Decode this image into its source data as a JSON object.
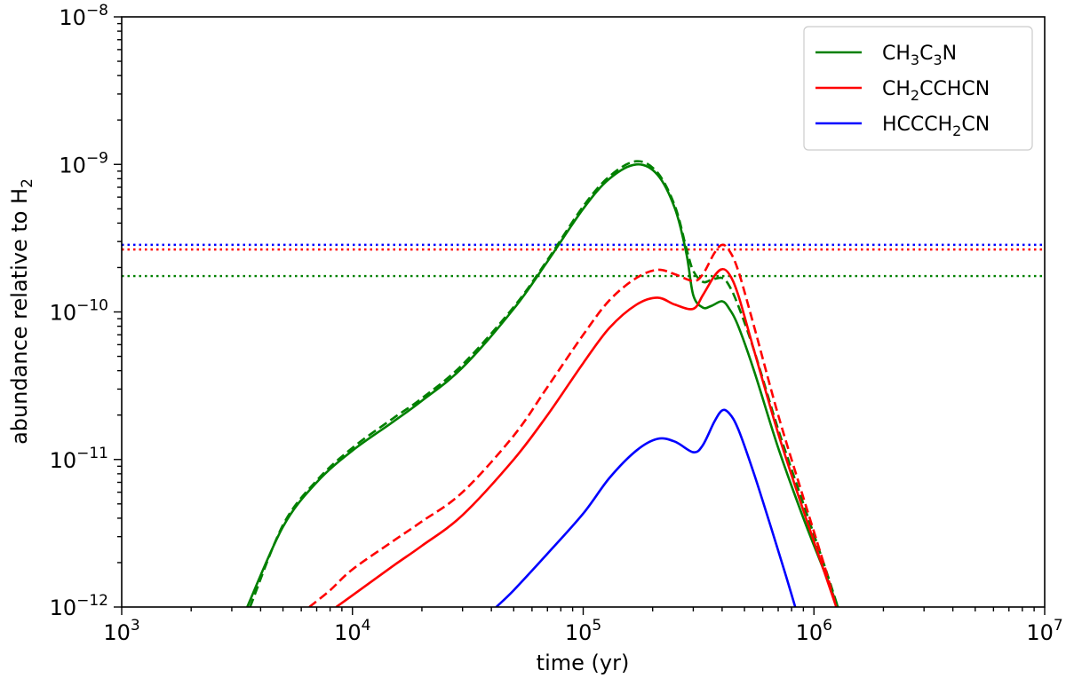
{
  "chart_data": {
    "type": "line",
    "title": "",
    "xlabel": "time (yr)",
    "ylabel": {
      "main": "abundance relative to H",
      "sub": "2"
    },
    "xscale": "log",
    "yscale": "log",
    "xlim": [
      1000,
      10000000
    ],
    "ylim": [
      1e-12,
      1e-08
    ],
    "grid": false,
    "legend_position": "top-right",
    "x_ticks": [
      {
        "value": 1000,
        "base": "10",
        "exp": "3"
      },
      {
        "value": 10000,
        "base": "10",
        "exp": "4"
      },
      {
        "value": 100000,
        "base": "10",
        "exp": "5"
      },
      {
        "value": 1000000,
        "base": "10",
        "exp": "6"
      },
      {
        "value": 10000000,
        "base": "10",
        "exp": "7"
      }
    ],
    "y_ticks": [
      {
        "value": 1e-12,
        "base": "10",
        "exp": "−12"
      },
      {
        "value": 1e-11,
        "base": "10",
        "exp": "−11"
      },
      {
        "value": 1e-10,
        "base": "10",
        "exp": "−10"
      },
      {
        "value": 1e-09,
        "base": "10",
        "exp": "−9"
      },
      {
        "value": 1e-08,
        "base": "10",
        "exp": "−8"
      }
    ],
    "legend": [
      {
        "parts": [
          [
            "CH",
            "3"
          ],
          [
            "C",
            "3"
          ],
          [
            "N",
            ""
          ]
        ],
        "color": "#008000"
      },
      {
        "parts": [
          [
            "CH",
            "2"
          ],
          [
            "CCHCN",
            ""
          ]
        ],
        "color": "#ff0000"
      },
      {
        "parts": [
          [
            "HCCCH",
            "2"
          ],
          [
            "CN",
            ""
          ]
        ],
        "color": "#0000ff"
      }
    ],
    "series": [
      {
        "name": "CH3C3N",
        "style": "solid",
        "color": "#008000",
        "x": [
          3500,
          5000,
          7000,
          10000,
          15000,
          20000,
          30000,
          50000,
          70000,
          100000,
          130000,
          170000,
          210000,
          250000,
          280000,
          300000,
          330000,
          360000,
          400000,
          430000,
          470000,
          550000,
          700000,
          900000,
          1100000,
          1270000
        ],
        "y": [
          1e-12,
          3.5e-12,
          7e-12,
          1.15e-11,
          1.8e-11,
          2.5e-11,
          4.2e-11,
          1.05e-10,
          2.2e-10,
          5e-10,
          8e-10,
          1e-09,
          8.5e-10,
          5e-10,
          2.5e-10,
          1.3e-10,
          1.07e-10,
          1.1e-10,
          1.18e-10,
          1.05e-10,
          8e-11,
          4e-11,
          1.2e-11,
          4e-12,
          1.8e-12,
          1e-12
        ]
      },
      {
        "name": "CH3C3N (dashed)",
        "style": "dashed",
        "color": "#008000",
        "x": [
          3600,
          5000,
          7000,
          10000,
          15000,
          20000,
          30000,
          50000,
          70000,
          100000,
          130000,
          170000,
          210000,
          250000,
          280000,
          300000,
          330000,
          360000,
          400000,
          430000,
          470000,
          550000,
          700000,
          900000,
          1100000,
          1270000
        ],
        "y": [
          1e-12,
          3.6e-12,
          7.2e-12,
          1.2e-11,
          1.9e-11,
          2.6e-11,
          4.4e-11,
          1.08e-10,
          2.25e-10,
          5.2e-10,
          8.3e-10,
          1.05e-09,
          8.8e-10,
          5.2e-10,
          2.7e-10,
          1.9e-10,
          1.6e-10,
          1.65e-10,
          1.7e-10,
          1.5e-10,
          1.1e-10,
          5.5e-11,
          1.6e-11,
          5e-12,
          2e-12,
          1e-12
        ]
      },
      {
        "name": "CH2CCHCN",
        "style": "solid",
        "color": "#ff0000",
        "x": [
          8500,
          10000,
          15000,
          20000,
          30000,
          50000,
          70000,
          100000,
          130000,
          170000,
          210000,
          250000,
          300000,
          330000,
          370000,
          400000,
          430000,
          470000,
          550000,
          700000,
          900000,
          1100000,
          1250000
        ],
        "y": [
          1e-12,
          1.2e-12,
          1.9e-12,
          2.6e-12,
          4.2e-12,
          1e-11,
          2e-11,
          4.5e-11,
          7.8e-11,
          1.12e-10,
          1.25e-10,
          1.12e-10,
          1.05e-10,
          1.3e-10,
          1.75e-10,
          1.95e-10,
          1.8e-10,
          1.3e-10,
          5.5e-11,
          1.5e-11,
          4.5e-12,
          1.8e-12,
          1e-12
        ]
      },
      {
        "name": "CH2CCHCN (dashed)",
        "style": "dashed",
        "color": "#ff0000",
        "x": [
          6500,
          8000,
          10000,
          15000,
          20000,
          30000,
          50000,
          70000,
          100000,
          130000,
          170000,
          210000,
          250000,
          300000,
          330000,
          370000,
          400000,
          430000,
          470000,
          550000,
          700000,
          900000,
          1100000,
          1250000
        ],
        "y": [
          1e-12,
          1.3e-12,
          1.8e-12,
          2.8e-12,
          3.8e-12,
          6e-12,
          1.45e-11,
          3.1e-11,
          7e-11,
          1.2e-10,
          1.7e-10,
          1.93e-10,
          1.8e-10,
          1.62e-10,
          1.8e-10,
          2.5e-10,
          2.85e-10,
          2.6e-10,
          1.9e-10,
          8e-11,
          2e-11,
          5.5e-12,
          2e-12,
          1e-12
        ]
      },
      {
        "name": "HCCCH2CN",
        "style": "solid",
        "color": "#0000ff",
        "x": [
          42000,
          50000,
          70000,
          100000,
          130000,
          170000,
          210000,
          250000,
          300000,
          330000,
          370000,
          400000,
          430000,
          470000,
          550000,
          650000,
          750000,
          830000
        ],
        "y": [
          1e-12,
          1.3e-12,
          2.3e-12,
          4.3e-12,
          7.5e-12,
          1.15e-11,
          1.38e-11,
          1.32e-11,
          1.12e-11,
          1.25e-11,
          1.8e-11,
          2.15e-11,
          2.05e-11,
          1.6e-11,
          8e-12,
          3.5e-12,
          1.7e-12,
          1e-12
        ]
      }
    ],
    "hlines": [
      {
        "y": 2.85e-10,
        "color": "#0000ff",
        "style": "dotted"
      },
      {
        "y": 2.65e-10,
        "color": "#ff0000",
        "style": "dotted"
      },
      {
        "y": 1.75e-10,
        "color": "#008000",
        "style": "dotted"
      }
    ]
  }
}
